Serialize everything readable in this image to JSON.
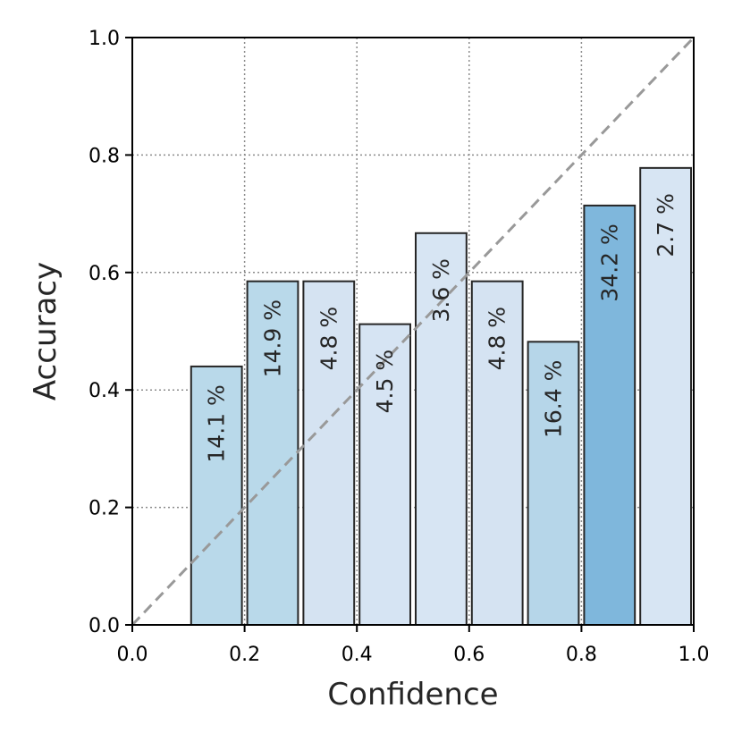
{
  "chart_data": {
    "type": "bar",
    "xlabel": "Confidence",
    "ylabel": "Accuracy",
    "xlim": [
      0.0,
      1.0
    ],
    "ylim": [
      0.0,
      1.0
    ],
    "xticks": [
      "0.0",
      "0.2",
      "0.4",
      "0.6",
      "0.8",
      "1.0"
    ],
    "yticks": [
      "0.0",
      "0.2",
      "0.4",
      "0.6",
      "0.8",
      "1.0"
    ],
    "grid": true,
    "diagonal": {
      "from": [
        0.0,
        0.0
      ],
      "to": [
        1.0,
        1.0
      ],
      "style": "dashed",
      "color": "#999999"
    },
    "bin_width": 0.1,
    "bins": [
      {
        "bin_start": 0.1,
        "accuracy": 0.44,
        "label": "14.1 %",
        "color": "#b9d9ea"
      },
      {
        "bin_start": 0.2,
        "accuracy": 0.585,
        "label": "14.9 %",
        "color": "#b9d9ea"
      },
      {
        "bin_start": 0.3,
        "accuracy": 0.585,
        "label": "4.8 %",
        "color": "#d5e3f2"
      },
      {
        "bin_start": 0.4,
        "accuracy": 0.512,
        "label": "4.5 %",
        "color": "#d6e4f3"
      },
      {
        "bin_start": 0.5,
        "accuracy": 0.667,
        "label": "3.6 %",
        "color": "#d7e5f3"
      },
      {
        "bin_start": 0.6,
        "accuracy": 0.585,
        "label": "4.8 %",
        "color": "#d5e3f2"
      },
      {
        "bin_start": 0.7,
        "accuracy": 0.482,
        "label": "16.4 %",
        "color": "#b6d6e9"
      },
      {
        "bin_start": 0.8,
        "accuracy": 0.714,
        "label": "34.2 %",
        "color": "#7fb7dc"
      },
      {
        "bin_start": 0.9,
        "accuracy": 0.778,
        "label": "2.7 %",
        "color": "#d7e5f3"
      }
    ]
  }
}
